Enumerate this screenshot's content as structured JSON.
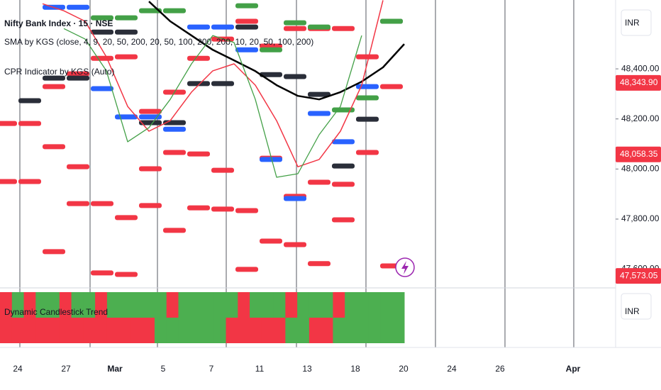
{
  "chart_data": {
    "type": "line",
    "title": "Nifty Bank Index · 15 · NSE",
    "indicators": [
      "SMA by KGS (close, 4, 9, 20, 50, 200, 20, 50, 100, 200, 200, 10, 20, 50, 100, 200)",
      "CPR Indicator by KGS (Auto)"
    ],
    "currency": "INR",
    "ylim": [
      47528,
      48675
    ],
    "yticks": [
      {
        "value": 48400,
        "label": "48,400.00"
      },
      {
        "value": 48200,
        "label": "48,200.00"
      },
      {
        "value": 48000,
        "label": "48,000.00"
      },
      {
        "value": 47800,
        "label": "47,800.00"
      },
      {
        "value": 47600,
        "label": "47,600.00"
      }
    ],
    "price_badges": [
      {
        "value": 48343.9,
        "label": "48,343.90",
        "color": "#f23645"
      },
      {
        "value": 48058.35,
        "label": "48,058.35",
        "color": "#f23645"
      },
      {
        "value": 47573.05,
        "label": "47,573.05",
        "color": "#f23645"
      }
    ],
    "x_labels": [
      "24",
      "27",
      "Mar",
      "5",
      "7",
      "11",
      "13",
      "18",
      "20",
      "24",
      "26",
      "Apr"
    ],
    "series": [
      {
        "color": "#000000",
        "width": 2.5,
        "values": [
          null,
          null,
          null,
          null,
          null,
          null,
          null,
          48669,
          48590,
          48533,
          48476,
          48434,
          48391,
          48335,
          48292,
          48278,
          48307,
          48349,
          48406,
          48499
        ]
      },
      {
        "color": "#f23645",
        "width": 1.5,
        "values": [
          null,
          null,
          48660,
          48632,
          48590,
          48448,
          48250,
          48151,
          48193,
          48307,
          48392,
          48420,
          48335,
          48193,
          48009,
          48038,
          48151,
          48335,
          48674,
          null
        ]
      },
      {
        "color": "#43a047",
        "width": 1.3,
        "values": [
          null,
          null,
          null,
          48561,
          48519,
          48392,
          48109,
          48165,
          48278,
          48420,
          48533,
          48505,
          48278,
          47967,
          47981,
          48137,
          48250,
          48533,
          null,
          null
        ]
      }
    ],
    "levels": [
      {
        "color": "#f23645",
        "values": [
          48182,
          48182,
          48329,
          48380,
          48442,
          48448,
          48230,
          48307,
          48442,
          48519,
          48590,
          48491,
          48561,
          48561,
          48561,
          48448,
          48329
        ]
      },
      {
        "color": "#f23645",
        "values": [
          47950,
          47950,
          48089,
          48009,
          47862,
          47806,
          48001,
          48066,
          48060,
          47995,
          47834,
          48043,
          47891,
          47947,
          47939,
          48066,
          47613
        ]
      },
      {
        "color": "#f23645",
        "values": [
          null,
          null,
          47670,
          47862,
          47585,
          47579,
          47854,
          47755,
          47845,
          47840,
          47599,
          47712,
          47698,
          47622,
          47797,
          null,
          null
        ]
      },
      {
        "color": "#2a2e39",
        "values": [
          null,
          48273,
          48363,
          48363,
          48547,
          48547,
          48185,
          48185,
          48341,
          48341,
          48567,
          48377,
          48369,
          48298,
          48012,
          48199,
          48590
        ]
      },
      {
        "color": "#2962ff",
        "values": [
          null,
          null,
          48646,
          48646,
          48321,
          48208,
          48208,
          48159,
          48567,
          48567,
          48476,
          48038,
          47882,
          48222,
          48109,
          48329,
          null
        ]
      },
      {
        "color": "#43a047",
        "values": [
          null,
          null,
          null,
          null,
          48604,
          48604,
          48632,
          48632,
          null,
          null,
          48652,
          48476,
          48584,
          48567,
          48236,
          48284,
          48590
        ]
      }
    ],
    "trend_panel": {
      "title": "Dynamic Candlestick Trend",
      "currency": "INR",
      "colors": {
        "up": "#4caf50",
        "down": "#f23645"
      },
      "rows": [
        [
          "down",
          "up",
          "down",
          "up",
          "up",
          "down",
          "up",
          "up",
          "down",
          "up",
          "up",
          "up",
          "up",
          "up",
          "down",
          "up",
          "up",
          "up",
          "up",
          "up",
          "down",
          "up",
          "up",
          "up",
          "down",
          "up",
          "up",
          "up",
          "down",
          "up",
          "up",
          "up",
          "up",
          "up"
        ],
        [
          "down",
          "down",
          "down",
          "down",
          "down",
          "down",
          "down",
          "down",
          "down",
          "down",
          "down",
          "down",
          "down",
          "up",
          "up",
          "up",
          "up",
          "up",
          "up",
          "down",
          "down",
          "down",
          "down",
          "down",
          "up",
          "up",
          "down",
          "down",
          "up",
          "up",
          "up",
          "up",
          "up",
          "up"
        ]
      ]
    }
  }
}
